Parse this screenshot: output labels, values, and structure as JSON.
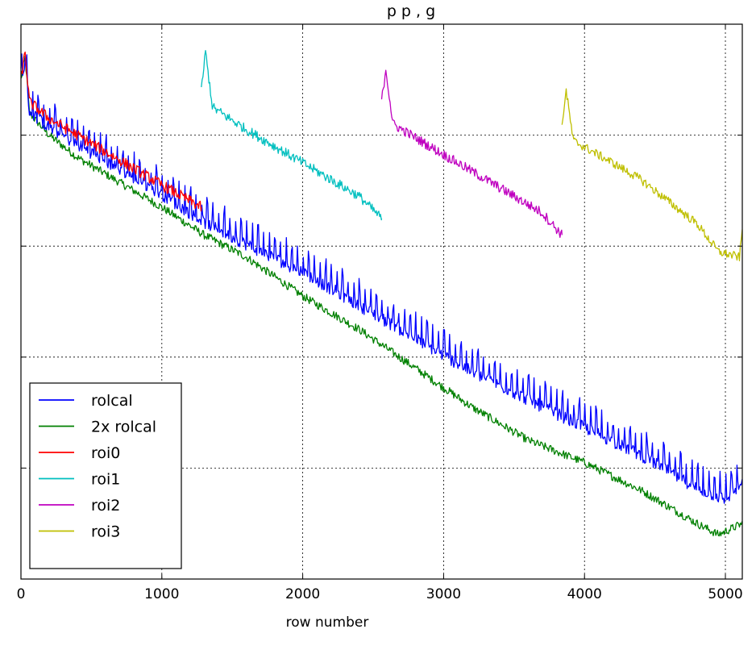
{
  "chart_data": {
    "type": "line",
    "title": "",
    "title_visible_fragment": "p p , g",
    "xlabel": "row number",
    "ylabel": "",
    "xlim": [
      0,
      5120
    ],
    "ylim": [
      0,
      1
    ],
    "xticks": [
      0,
      1000,
      2000,
      3000,
      4000,
      5000
    ],
    "xtick_labels": [
      "0",
      "1000",
      "2000",
      "3000",
      "4000",
      "5000"
    ],
    "yticks": [
      0.2,
      0.4,
      0.6,
      0.8
    ],
    "grid": true,
    "legend_position": "lower-left",
    "series": [
      {
        "name": "rolcal",
        "color": "#0000ff",
        "x": [
          0,
          30,
          60,
          200,
          400,
          600,
          800,
          1000,
          1300,
          1600,
          2000,
          2400,
          2800,
          3200,
          3600,
          4000,
          4400,
          4800,
          5000,
          5120
        ],
        "y": [
          0.9,
          0.94,
          0.85,
          0.82,
          0.79,
          0.76,
          0.73,
          0.7,
          0.65,
          0.61,
          0.56,
          0.5,
          0.44,
          0.38,
          0.33,
          0.28,
          0.23,
          0.17,
          0.15,
          0.18
        ],
        "oscillation": 0.045
      },
      {
        "name": "2x rolcal",
        "color": "#008000",
        "x": [
          0,
          30,
          60,
          200,
          400,
          600,
          800,
          1000,
          1300,
          1600,
          2000,
          2400,
          2800,
          3200,
          3600,
          4000,
          4400,
          4800,
          4950,
          5120
        ],
        "y": [
          0.9,
          0.94,
          0.84,
          0.8,
          0.76,
          0.73,
          0.7,
          0.67,
          0.62,
          0.58,
          0.51,
          0.45,
          0.38,
          0.31,
          0.25,
          0.21,
          0.16,
          0.1,
          0.08,
          0.1
        ],
        "oscillation": 0.015
      },
      {
        "name": "roi0",
        "color": "#ff0000",
        "x": [
          0,
          30,
          60,
          200,
          400,
          600,
          800,
          1000,
          1280
        ],
        "y": [
          0.9,
          0.95,
          0.86,
          0.83,
          0.8,
          0.77,
          0.74,
          0.71,
          0.67
        ],
        "oscillation": 0.02
      },
      {
        "name": "roi1",
        "color": "#00bfbf",
        "x": [
          1280,
          1310,
          1360,
          1600,
          1800,
          2000,
          2200,
          2400,
          2560
        ],
        "y": [
          0.88,
          0.95,
          0.85,
          0.81,
          0.78,
          0.75,
          0.72,
          0.69,
          0.65
        ],
        "oscillation": 0.018
      },
      {
        "name": "roi2",
        "color": "#bf00bf",
        "x": [
          2560,
          2590,
          2640,
          2900,
          3100,
          3300,
          3500,
          3700,
          3840
        ],
        "y": [
          0.86,
          0.92,
          0.82,
          0.78,
          0.75,
          0.72,
          0.69,
          0.66,
          0.62
        ],
        "oscillation": 0.018
      },
      {
        "name": "roi3",
        "color": "#bfbf00",
        "x": [
          3840,
          3870,
          3920,
          4200,
          4400,
          4600,
          4800,
          4950,
          5100,
          5120
        ],
        "y": [
          0.82,
          0.88,
          0.79,
          0.75,
          0.72,
          0.68,
          0.64,
          0.59,
          0.58,
          0.63
        ],
        "oscillation": 0.016
      }
    ]
  }
}
